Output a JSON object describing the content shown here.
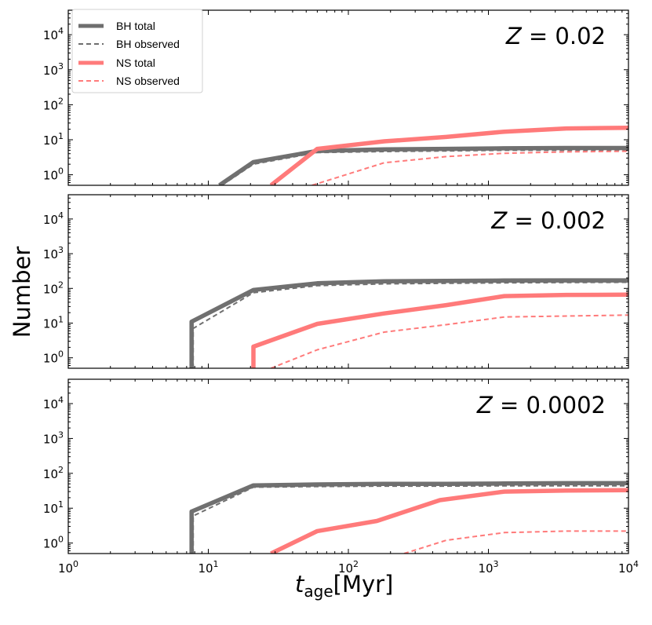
{
  "chart_data": {
    "type": "line",
    "xlabel": "t_age[Myr]",
    "xlabel_main": "t",
    "xlabel_sub": "age",
    "xlabel_unit": "[Myr]",
    "ylabel": "Number",
    "x_scale": "log",
    "y_scale": "log",
    "xlim": [
      1,
      10000
    ],
    "ylim": [
      0.5,
      50000
    ],
    "x_ticks": [
      {
        "base": "10",
        "exp": "0"
      },
      {
        "base": "10",
        "exp": "1"
      },
      {
        "base": "10",
        "exp": "2"
      },
      {
        "base": "10",
        "exp": "3"
      },
      {
        "base": "10",
        "exp": "4"
      }
    ],
    "y_ticks": [
      {
        "base": "10",
        "exp": "0"
      },
      {
        "base": "10",
        "exp": "1"
      },
      {
        "base": "10",
        "exp": "2"
      },
      {
        "base": "10",
        "exp": "3"
      },
      {
        "base": "10",
        "exp": "4"
      }
    ],
    "legend": {
      "placement": "top-left",
      "entries": [
        {
          "label": "BH total",
          "color": "#6e6e6e",
          "style": "solid"
        },
        {
          "label": "BH observed",
          "color": "#6e6e6e",
          "style": "dashed"
        },
        {
          "label": "NS total",
          "color": "#ff7b7b",
          "style": "solid"
        },
        {
          "label": "NS observed",
          "color": "#ff7b7b",
          "style": "dashed"
        }
      ]
    },
    "colors": {
      "bh": "#707070",
      "ns": "#ff7a7a"
    },
    "panels": [
      {
        "label": "Z = 0.02",
        "label_lhs": "Z",
        "label_rhs": "= 0.02",
        "series": [
          {
            "name": "BH total",
            "x": [
              12,
              21,
              60,
              180,
              500,
              1300,
              3600,
              10000
            ],
            "y": [
              0.5,
              2.3,
              4.8,
              5.3,
              5.5,
              5.7,
              5.8,
              5.8
            ]
          },
          {
            "name": "BH observed",
            "x": [
              12.5,
              21,
              60,
              180,
              500,
              1300,
              3600,
              10000
            ],
            "y": [
              0.5,
              2.0,
              4.3,
              4.6,
              4.8,
              5.0,
              5.0,
              5.0
            ]
          },
          {
            "name": "NS total",
            "x": [
              28,
              60,
              180,
              500,
              1300,
              3600,
              10000
            ],
            "y": [
              0.5,
              5.5,
              9,
              12,
              17,
              21,
              22
            ]
          },
          {
            "name": "NS observed",
            "x": [
              55,
              180,
              500,
              1300,
              3600,
              10000
            ],
            "y": [
              0.5,
              2.2,
              3.3,
              4.1,
              4.5,
              4.7
            ]
          }
        ]
      },
      {
        "label": "Z = 0.002",
        "label_lhs": "Z",
        "label_rhs": "= 0.002",
        "series": [
          {
            "name": "BH total",
            "x": [
              7.6,
              7.6,
              21,
              60,
              180,
              500,
              1300,
              3600,
              10000
            ],
            "y": [
              0.5,
              11,
              90,
              140,
              160,
              165,
              168,
              170,
              170
            ]
          },
          {
            "name": "BH observed",
            "x": [
              7.8,
              7.8,
              21,
              60,
              180,
              500,
              1300,
              3600,
              10000
            ],
            "y": [
              0.5,
              7,
              75,
              120,
              135,
              140,
              145,
              148,
              150
            ]
          },
          {
            "name": "NS total",
            "x": [
              21,
              21,
              60,
              180,
              500,
              1300,
              3600,
              10000
            ],
            "y": [
              0.5,
              2.1,
              9.5,
              19,
              33,
              60,
              65,
              66
            ]
          },
          {
            "name": "NS observed",
            "x": [
              28,
              60,
              180,
              500,
              1300,
              3600,
              10000
            ],
            "y": [
              0.5,
              1.7,
              5.5,
              9,
              15,
              16,
              17
            ]
          }
        ]
      },
      {
        "label": "Z = 0.0002",
        "label_lhs": "Z",
        "label_rhs": "= 0.0002",
        "series": [
          {
            "name": "BH total",
            "x": [
              7.6,
              7.6,
              21,
              60,
              180,
              500,
              1300,
              3600,
              10000
            ],
            "y": [
              0.5,
              8,
              45,
              48,
              50,
              50,
              51,
              52,
              52
            ]
          },
          {
            "name": "BH observed",
            "x": [
              7.8,
              7.8,
              21,
              60,
              180,
              500,
              1300,
              3600,
              10000
            ],
            "y": [
              0.5,
              6,
              40,
              42,
              43,
              43,
              44,
              44,
              44
            ]
          },
          {
            "name": "NS total",
            "x": [
              28,
              60,
              160,
              450,
              1300,
              3600,
              10000
            ],
            "y": [
              0.5,
              2.2,
              4.3,
              17,
              30,
              32,
              33
            ]
          },
          {
            "name": "NS observed",
            "x": [
              250,
              500,
              1300,
              3600,
              10000
            ],
            "y": [
              0.5,
              1.2,
              2.0,
              2.2,
              2.2
            ]
          }
        ]
      }
    ]
  }
}
